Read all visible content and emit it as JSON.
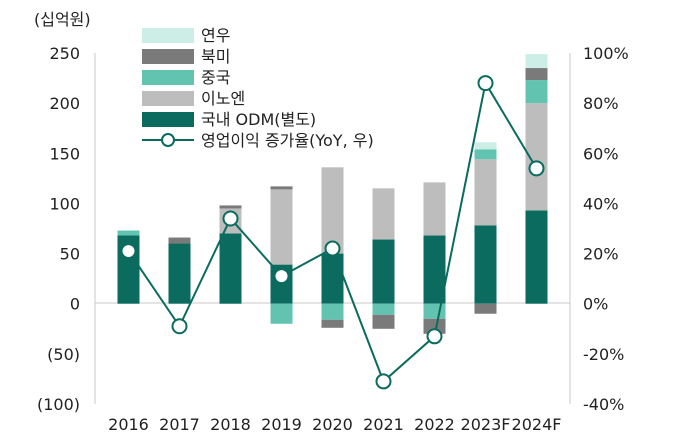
{
  "chart_data": {
    "type": "bar",
    "stacked": true,
    "unit_label": "(십억원)",
    "categories": [
      "2016",
      "2017",
      "2018",
      "2019",
      "2020",
      "2021",
      "2022",
      "2023F",
      "2024F"
    ],
    "series": [
      {
        "name": "국내 ODM(별도)",
        "type": "bar",
        "axis": "left",
        "color": "#0a6b5e",
        "values": [
          68,
          60,
          70,
          39,
          50,
          64,
          68,
          78,
          93
        ]
      },
      {
        "name": "이노엔",
        "type": "bar",
        "axis": "left",
        "color": "#bdbdbd",
        "values": [
          0,
          0,
          25,
          75,
          86,
          51,
          53,
          66,
          107
        ]
      },
      {
        "name": "중국",
        "type": "bar",
        "axis": "left",
        "color": "#62c4b0",
        "values": [
          5,
          0,
          0,
          -20,
          -16,
          -11,
          -15,
          10,
          23
        ]
      },
      {
        "name": "북미",
        "type": "bar",
        "axis": "left",
        "color": "#7a7a7a",
        "values": [
          0,
          6,
          3,
          3,
          -8,
          -14,
          -15,
          -10,
          12
        ]
      },
      {
        "name": "연우",
        "type": "bar",
        "axis": "left",
        "color": "#cdeee6",
        "values": [
          0,
          0,
          0,
          0,
          0,
          0,
          0,
          7,
          14
        ]
      },
      {
        "name": "영업이익 증가율(YoY, 우)",
        "type": "line",
        "axis": "right",
        "color": "#0a6b5e",
        "values": [
          21,
          -9,
          34,
          11,
          22,
          -31,
          -13,
          88,
          54
        ]
      }
    ],
    "y_left": {
      "min": -100,
      "max": 250,
      "ticks": [
        250,
        200,
        150,
        100,
        50,
        0,
        -50,
        -100
      ],
      "tick_labels": [
        "250",
        "200",
        "150",
        "100",
        "50",
        "0",
        "(50)",
        "(100)"
      ]
    },
    "y_right": {
      "min": -40,
      "max": 100,
      "ticks": [
        100,
        80,
        60,
        40,
        20,
        0,
        -20,
        -40
      ],
      "tick_labels": [
        "100%",
        "80%",
        "60%",
        "40%",
        "20%",
        "0%",
        "-20%",
        "-40%"
      ]
    },
    "legend_placement": "top-left",
    "legend_order": [
      "연우",
      "북미",
      "중국",
      "이노엔",
      "국내 ODM(별도)",
      "영업이익 증가율(YoY, 우)"
    ],
    "grid": false
  }
}
